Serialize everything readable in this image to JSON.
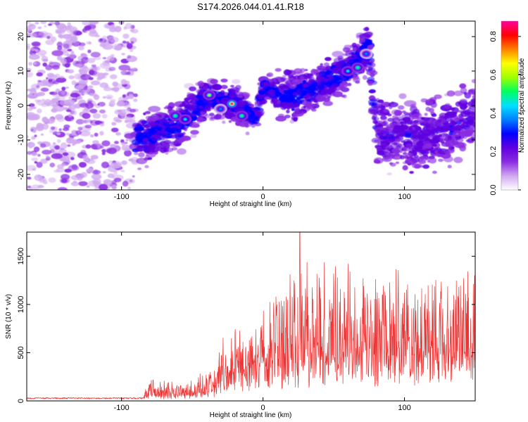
{
  "title": "S174.2026.044.01.41.R18",
  "chart_data": [
    {
      "type": "heatmap",
      "name": "spectrogram",
      "xlabel": "Height of straight line (km)",
      "ylabel": "Frequency (Hz)",
      "xlim": [
        -167,
        150
      ],
      "ylim": [
        -24.5,
        24.5
      ],
      "xticks": [
        -100,
        0,
        100
      ],
      "yticks": [
        -20,
        -10,
        0,
        10,
        20
      ],
      "colorbar": {
        "label": "Normalized spectral amplitude",
        "range": [
          0,
          0.88
        ],
        "ticks": [
          0.0,
          0.2,
          0.4,
          0.6,
          0.8
        ],
        "colors": [
          "#ffffff",
          "#d0a8f0",
          "#8a2be2",
          "#6000e0",
          "#0000ff",
          "#0080ff",
          "#00e0ff",
          "#00ff60",
          "#a0ff00",
          "#ffff00",
          "#ff8000",
          "#ff0000",
          "#ff00a0"
        ]
      },
      "ridge": {
        "x": [
          -167,
          -120,
          -90,
          -60,
          -40,
          -20,
          -5,
          0,
          20,
          50,
          75,
          80,
          110,
          150
        ],
        "y": [
          2,
          -3,
          -10,
          -6,
          2,
          1,
          -4,
          5,
          2,
          8,
          16,
          -8,
          -10,
          -3
        ]
      },
      "hotspots": [
        {
          "x": -62,
          "y": -3,
          "a": 0.5
        },
        {
          "x": -55,
          "y": -4,
          "a": 0.45
        },
        {
          "x": -38,
          "y": 3,
          "a": 0.55
        },
        {
          "x": -30,
          "y": -1,
          "a": 0.4
        },
        {
          "x": -22,
          "y": 0.5,
          "a": 0.88
        },
        {
          "x": -15,
          "y": -3,
          "a": 0.5
        },
        {
          "x": 60,
          "y": 10,
          "a": 0.45
        },
        {
          "x": 67,
          "y": 11,
          "a": 0.5
        },
        {
          "x": 73,
          "y": 15,
          "a": 0.4
        }
      ]
    },
    {
      "type": "line",
      "name": "snr",
      "xlabel": "Height of straight line (km)",
      "ylabel": "SNR (10 * v/v)",
      "xlim": [
        -167,
        150
      ],
      "ylim": [
        0,
        1750
      ],
      "xticks": [
        -100,
        0,
        100
      ],
      "yticks": [
        0,
        500,
        1000,
        1500
      ],
      "color": "#ee3333",
      "envelope": {
        "x": [
          -167,
          -85,
          -80,
          -55,
          -40,
          -35,
          -30,
          -20,
          0,
          5,
          10,
          30,
          60,
          100,
          150
        ],
        "base": [
          20,
          20,
          50,
          60,
          80,
          120,
          200,
          280,
          330,
          360,
          380,
          420,
          450,
          450,
          450
        ],
        "peak": [
          35,
          40,
          250,
          200,
          300,
          400,
          600,
          750,
          880,
          1050,
          1150,
          1500,
          1450,
          1350,
          1380
        ]
      },
      "max_spike": {
        "x": 26,
        "y": 1750
      }
    }
  ]
}
